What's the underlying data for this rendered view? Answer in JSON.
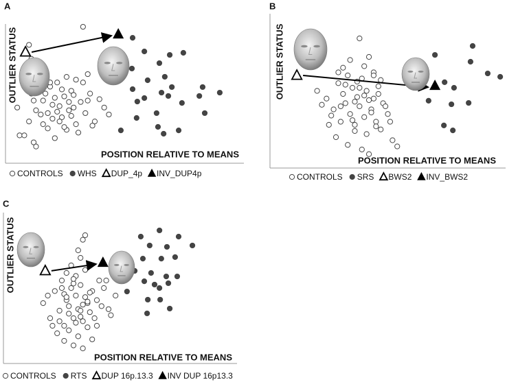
{
  "chart_data": [
    {
      "type": "scatter",
      "panel_label": "A",
      "xlabel": "POSITION RELATIVE TO MEANS",
      "ylabel": "OUTLIER STATUS",
      "xlim": [
        0,
        100
      ],
      "ylim": [
        0,
        100
      ],
      "series": [
        {
          "name": "CONTROLS",
          "marker": "circle-open",
          "color": "#444444",
          "x": [
            5,
            8,
            10,
            12,
            14,
            15,
            17,
            18,
            20,
            22,
            24,
            25,
            27,
            28,
            30,
            32,
            34,
            36,
            38,
            40,
            42,
            44,
            6,
            9,
            11,
            13,
            16,
            19,
            21,
            23,
            26,
            29,
            31,
            33,
            35,
            37,
            12,
            15,
            18,
            21,
            24,
            27,
            30,
            14,
            17,
            20,
            23,
            26,
            29,
            10,
            13,
            16,
            19,
            22,
            25,
            28,
            8,
            11,
            35,
            33
          ],
          "y": [
            40,
            55,
            30,
            45,
            60,
            35,
            50,
            25,
            42,
            58,
            33,
            48,
            38,
            52,
            28,
            44,
            36,
            50,
            30,
            46,
            40,
            35,
            20,
            65,
            50,
            38,
            28,
            55,
            47,
            30,
            62,
            40,
            22,
            58,
            45,
            27,
            15,
            72,
            36,
            18,
            53,
            44,
            60,
            52,
            66,
            32,
            41,
            24,
            49,
            85,
            12,
            45,
            58,
            37,
            26,
            34,
            20,
            75,
            64,
            98
          ]
        },
        {
          "name": "WHS",
          "marker": "circle",
          "color": "#444444",
          "x": [
            54.1,
            59.1,
            69.9,
            75.7,
            53.8,
            65.5,
            67.8,
            60.5,
            70.8,
            54.1,
            66.4,
            59.1,
            83.9,
            82.5,
            91.2,
            75.1,
            69.3,
            64.3,
            55.8,
            56.1,
            64.9,
            67.3,
            49.1,
            73.7,
            84.8
          ],
          "y": [
            90.1,
            80.3,
            77.8,
            79.3,
            68.0,
            71.9,
            62.1,
            59.6,
            54.7,
            53.2,
            50.7,
            46.8,
            54.7,
            48.3,
            50.7,
            43.3,
            48.3,
            36.0,
            32.5,
            44.3,
            26.1,
            21.2,
            23.6,
            23.6,
            36.0
          ]
        },
        {
          "name": "DUP_4p",
          "marker": "triangle-open",
          "color": "#000000",
          "x": [
            8.5
          ],
          "y": [
            79.8
          ]
        },
        {
          "name": "INV_DUP4p",
          "marker": "triangle",
          "color": "#000000",
          "x": [
            48.0
          ],
          "y": [
            92.6
          ]
        }
      ]
    },
    {
      "type": "scatter",
      "panel_label": "B",
      "xlabel": "POSITION RELATIVE TO MEANS",
      "ylabel": "OUTLIER STATUS",
      "xlim": [
        0,
        100
      ],
      "ylim": [
        0,
        100
      ],
      "series": [
        {
          "name": "CONTROLS",
          "marker": "circle-open",
          "color": "#444444",
          "x": [
            20,
            24,
            27,
            29,
            30,
            31,
            32,
            33,
            34,
            35,
            36,
            37,
            38,
            39,
            40,
            41,
            42,
            43,
            44,
            45,
            46,
            47,
            48,
            50,
            52,
            54,
            28,
            33,
            36,
            39,
            42,
            45,
            31,
            34,
            37,
            40,
            43,
            30,
            35,
            38,
            41,
            44,
            32,
            36,
            29,
            26,
            47,
            49,
            51,
            25,
            22,
            38,
            40,
            42,
            44,
            46
          ],
          "y": [
            50,
            45,
            38,
            55,
            30,
            48,
            42,
            60,
            35,
            52,
            28,
            46,
            40,
            58,
            33,
            50,
            44,
            38,
            62,
            30,
            48,
            25,
            42,
            35,
            18,
            14,
            20,
            15,
            24,
            12,
            9,
            27,
            65,
            70,
            56,
            47,
            36,
            40,
            31,
            52,
            22,
            45,
            54,
            43,
            62,
            34,
            57,
            40,
            30,
            28,
            41,
            84,
            66,
            72,
            60,
            53
          ]
        },
        {
          "name": "SRS",
          "marker": "circle",
          "color": "#444444",
          "x": [
            70.0,
            86.0,
            85.1,
            92.4,
            97.7,
            74.1,
            78.1,
            67.3,
            77.0,
            84.3,
            73.8,
            77.6
          ],
          "y": [
            73.3,
            79.1,
            68.9,
            61.3,
            59.1,
            55.6,
            52.0,
            43.6,
            41.3,
            42.2,
            27.6,
            24.4
          ]
        },
        {
          "name": "BWS2",
          "marker": "triangle-open",
          "color": "#000000",
          "x": [
            11.4
          ],
          "y": [
            60.0
          ]
        },
        {
          "name": "INV_BWS2",
          "marker": "triangle",
          "color": "#000000",
          "x": [
            70.0
          ],
          "y": [
            53.3
          ]
        }
      ]
    },
    {
      "type": "scatter",
      "panel_label": "C",
      "xlabel": "POSITION RELATIVE TO MEANS",
      "ylabel": "OUTLIER STATUS",
      "xlim": [
        0,
        100
      ],
      "ylim": [
        0,
        100
      ],
      "series": [
        {
          "name": "CONTROLS",
          "marker": "circle-open",
          "color": "#444444",
          "x": [
            17,
            20,
            22,
            24,
            25,
            26,
            27,
            28,
            29,
            30,
            31,
            32,
            33,
            34,
            35,
            36,
            37,
            38,
            39,
            40,
            42,
            44,
            46,
            48,
            50,
            23,
            26,
            28,
            30,
            32,
            34,
            36,
            38,
            27,
            29,
            31,
            33,
            35,
            25,
            28,
            31,
            34,
            37,
            40,
            26,
            30,
            33,
            36,
            24,
            27,
            30,
            33,
            21,
            19,
            45,
            43,
            34,
            32,
            35,
            41
          ],
          "y": [
            40,
            30,
            48,
            35,
            55,
            25,
            42,
            38,
            50,
            30,
            45,
            36,
            52,
            28,
            44,
            40,
            34,
            48,
            30,
            42,
            38,
            55,
            32,
            45,
            60,
            20,
            15,
            22,
            12,
            18,
            10,
            24,
            16,
            60,
            65,
            58,
            70,
            62,
            50,
            33,
            27,
            39,
            47,
            25,
            46,
            53,
            35,
            41,
            28,
            44,
            56,
            31,
            25,
            45,
            36,
            50,
            82,
            75,
            85,
            55
          ]
        },
        {
          "name": "RTS",
          "marker": "circle",
          "color": "#444444",
          "x": [
            58.8,
            66.8,
            75.0,
            80.9,
            62.6,
            70.0,
            59.7,
            67.6,
            73.5,
            56.2,
            63.2,
            69.7,
            74.4,
            60.3,
            64.7,
            70.6,
            52.9,
            66.8,
            61.8,
            67.1,
            61.5,
            71.2
          ],
          "y": [
            84.1,
            88.2,
            84.1,
            78.2,
            78.2,
            77.3,
            69.5,
            69.5,
            70.5,
            61.4,
            60.0,
            57.7,
            57.7,
            54.5,
            52.3,
            53.2,
            47.7,
            50.0,
            42.3,
            42.3,
            33.2,
            36.4
          ]
        },
        {
          "name": "DUP 16p.13.3",
          "marker": "triangle-open",
          "color": "#000000",
          "x": [
            17.9
          ],
          "y": [
            61.4
          ]
        },
        {
          "name": "INV DUP 16p13.3",
          "marker": "triangle",
          "color": "#000000",
          "x": [
            42.6
          ],
          "y": [
            66.8
          ]
        }
      ]
    }
  ]
}
